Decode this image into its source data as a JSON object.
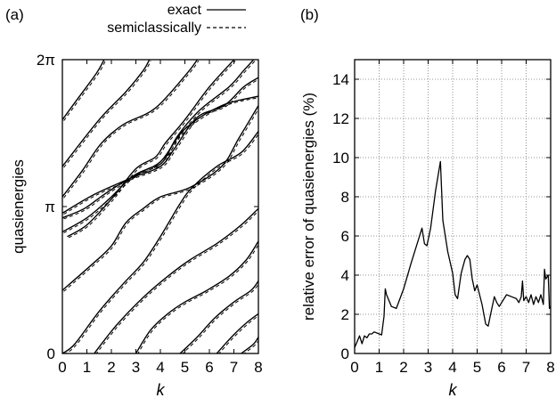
{
  "panels": {
    "a_label": "(a)",
    "b_label": "(b)"
  },
  "chart_data": [
    {
      "type": "line",
      "panel": "(a)",
      "xlabel": "k",
      "ylabel": "quasienergies",
      "xlim": [
        0,
        8
      ],
      "ylim": [
        0,
        6.2832
      ],
      "xticks": [
        "0",
        "1",
        "2",
        "3",
        "4",
        "5",
        "6",
        "7",
        "8"
      ],
      "yticks": [
        {
          "value": 0,
          "label": "0"
        },
        {
          "value": 3.1416,
          "label": "π"
        },
        {
          "value": 6.2832,
          "label": "2π"
        }
      ],
      "legend": {
        "placement": "top-right, above plot",
        "entries": [
          {
            "name": "exact",
            "style": "solid"
          },
          {
            "name": "semiclassically",
            "style": "dashed"
          }
        ]
      },
      "grid": false,
      "series": [
        {
          "values": [
            [
              0,
              5.0
            ],
            [
              0.7,
              5.5
            ],
            [
              1.4,
              6.0
            ],
            [
              1.7,
              6.28
            ]
          ]
        },
        {
          "values": [
            [
              0,
              4.0
            ],
            [
              1.5,
              5.0
            ],
            [
              2.6,
              5.6
            ],
            [
              3.3,
              6.05
            ],
            [
              3.55,
              6.28
            ]
          ]
        },
        {
          "values": [
            [
              0,
              3.35
            ],
            [
              0.8,
              3.9
            ],
            [
              1.6,
              4.5
            ],
            [
              2.5,
              4.9
            ],
            [
              3.8,
              5.25
            ],
            [
              5.1,
              6.0
            ],
            [
              5.5,
              6.28
            ]
          ]
        },
        {
          "values": [
            [
              0,
              2.9
            ],
            [
              0.9,
              3.1
            ],
            [
              1.7,
              3.4
            ],
            [
              2.6,
              3.7
            ],
            [
              3.5,
              3.95
            ],
            [
              4.1,
              4.1
            ],
            [
              4.7,
              4.65
            ],
            [
              5.6,
              5.2
            ],
            [
              6.8,
              5.7
            ],
            [
              7.4,
              6.05
            ],
            [
              7.8,
              6.28
            ]
          ]
        },
        {
          "values": [
            [
              0,
              3.0
            ],
            [
              1.3,
              3.4
            ],
            [
              2.8,
              3.75
            ],
            [
              4.0,
              4.0
            ],
            [
              4.6,
              4.4
            ],
            [
              5.5,
              5.05
            ],
            [
              6.6,
              5.3
            ],
            [
              7.4,
              5.7
            ],
            [
              8,
              5.9
            ]
          ]
        },
        {
          "values": [
            [
              0,
              2.6
            ],
            [
              1.0,
              2.9
            ],
            [
              1.9,
              3.3
            ],
            [
              2.9,
              3.8
            ],
            [
              4.0,
              4.1
            ],
            [
              5.0,
              4.8
            ],
            [
              6.5,
              5.3
            ],
            [
              8,
              5.5
            ]
          ]
        },
        {
          "values": [
            [
              0.2,
              2.5
            ],
            [
              1.0,
              2.75
            ],
            [
              2.0,
              3.3
            ],
            [
              3.0,
              3.95
            ],
            [
              3.8,
              4.2
            ],
            [
              4.2,
              4.5
            ],
            [
              5.0,
              5.0
            ],
            [
              6.0,
              5.7
            ],
            [
              7.0,
              6.28
            ]
          ]
        },
        {
          "values": [
            [
              0,
              1.35
            ],
            [
              1.2,
              1.9
            ],
            [
              2.0,
              2.3
            ],
            [
              2.6,
              2.8
            ],
            [
              3.3,
              3.1
            ],
            [
              4.0,
              3.35
            ],
            [
              5.2,
              3.55
            ],
            [
              6.5,
              4.0
            ],
            [
              7.2,
              4.6
            ],
            [
              8,
              5.3
            ]
          ]
        },
        {
          "values": [
            [
              1.3,
              0
            ],
            [
              2.2,
              0.6
            ],
            [
              3.3,
              1.2
            ],
            [
              4.3,
              1.65
            ],
            [
              5.2,
              2.0
            ],
            [
              6.3,
              2.35
            ],
            [
              7.3,
              2.75
            ],
            [
              8,
              3.1
            ]
          ]
        },
        {
          "values": [
            [
              0,
              0.0
            ],
            [
              0.5,
              0.2
            ],
            [
              1.5,
              0.9
            ],
            [
              2.5,
              1.5
            ],
            [
              3.3,
              1.95
            ],
            [
              4.0,
              2.5
            ],
            [
              4.8,
              3.2
            ],
            [
              5.3,
              3.55
            ],
            [
              6.3,
              4.0
            ],
            [
              7.3,
              4.3
            ],
            [
              8,
              4.75
            ]
          ]
        },
        {
          "values": [
            [
              3.0,
              0
            ],
            [
              3.6,
              0.5
            ],
            [
              4.3,
              0.85
            ],
            [
              5.0,
              1.1
            ],
            [
              5.9,
              1.35
            ],
            [
              6.8,
              1.65
            ],
            [
              7.5,
              2.0
            ],
            [
              8,
              2.4
            ]
          ]
        },
        {
          "values": [
            [
              4.8,
              0
            ],
            [
              5.5,
              0.35
            ],
            [
              6.2,
              0.75
            ],
            [
              7.0,
              1.1
            ],
            [
              7.7,
              1.35
            ],
            [
              8,
              1.55
            ]
          ]
        },
        {
          "values": [
            [
              6.3,
              0
            ],
            [
              6.9,
              0.35
            ],
            [
              7.5,
              0.65
            ],
            [
              8,
              0.85
            ]
          ]
        },
        {
          "values": [
            [
              7.3,
              0
            ],
            [
              7.8,
              0.2
            ],
            [
              8,
              0.35
            ]
          ]
        }
      ]
    },
    {
      "type": "line",
      "panel": "(b)",
      "xlabel": "k",
      "ylabel": "relative error of quasienergies (%)",
      "xlim": [
        0,
        8
      ],
      "ylim": [
        0,
        15
      ],
      "xticks": [
        "0",
        "1",
        "2",
        "3",
        "4",
        "5",
        "6",
        "7",
        "8"
      ],
      "yticks": [
        "0",
        "2",
        "4",
        "6",
        "8",
        "10",
        "12",
        "14"
      ],
      "grid": true,
      "series": [
        {
          "values": [
            [
              0,
              0.3
            ],
            [
              0.1,
              0.6
            ],
            [
              0.2,
              0.9
            ],
            [
              0.3,
              0.5
            ],
            [
              0.4,
              0.9
            ],
            [
              0.5,
              0.8
            ],
            [
              0.6,
              1.0
            ],
            [
              0.7,
              1.0
            ],
            [
              0.8,
              1.1
            ],
            [
              1.0,
              1.0
            ],
            [
              1.1,
              0.95
            ],
            [
              1.2,
              1.9
            ],
            [
              1.25,
              3.3
            ],
            [
              1.3,
              3.0
            ],
            [
              1.5,
              2.4
            ],
            [
              1.7,
              2.3
            ],
            [
              2.0,
              3.3
            ],
            [
              2.3,
              4.6
            ],
            [
              2.6,
              5.8
            ],
            [
              2.75,
              6.4
            ],
            [
              2.85,
              5.6
            ],
            [
              2.95,
              5.5
            ],
            [
              3.1,
              6.4
            ],
            [
              3.3,
              8.3
            ],
            [
              3.5,
              9.8
            ],
            [
              3.6,
              6.8
            ],
            [
              3.8,
              5.2
            ],
            [
              4.0,
              4.1
            ],
            [
              4.1,
              3.0
            ],
            [
              4.2,
              2.8
            ],
            [
              4.35,
              4.1
            ],
            [
              4.5,
              4.8
            ],
            [
              4.6,
              5.0
            ],
            [
              4.7,
              4.8
            ],
            [
              4.8,
              3.8
            ],
            [
              4.9,
              3.2
            ],
            [
              5.0,
              3.5
            ],
            [
              5.2,
              2.5
            ],
            [
              5.35,
              1.5
            ],
            [
              5.45,
              1.4
            ],
            [
              5.55,
              2.0
            ],
            [
              5.7,
              2.9
            ],
            [
              5.8,
              2.6
            ],
            [
              5.9,
              2.4
            ],
            [
              6.0,
              2.6
            ],
            [
              6.2,
              3.0
            ],
            [
              6.4,
              2.9
            ],
            [
              6.6,
              2.8
            ],
            [
              6.7,
              2.6
            ],
            [
              6.8,
              2.9
            ],
            [
              6.85,
              3.7
            ],
            [
              6.9,
              2.7
            ],
            [
              7.0,
              2.9
            ],
            [
              7.1,
              2.6
            ],
            [
              7.2,
              3.0
            ],
            [
              7.3,
              2.5
            ],
            [
              7.4,
              2.9
            ],
            [
              7.5,
              2.6
            ],
            [
              7.6,
              3.0
            ],
            [
              7.7,
              2.5
            ],
            [
              7.75,
              4.3
            ],
            [
              7.8,
              3.8
            ],
            [
              7.9,
              4.0
            ],
            [
              7.95,
              2.3
            ],
            [
              8,
              2.4
            ]
          ]
        }
      ]
    }
  ]
}
